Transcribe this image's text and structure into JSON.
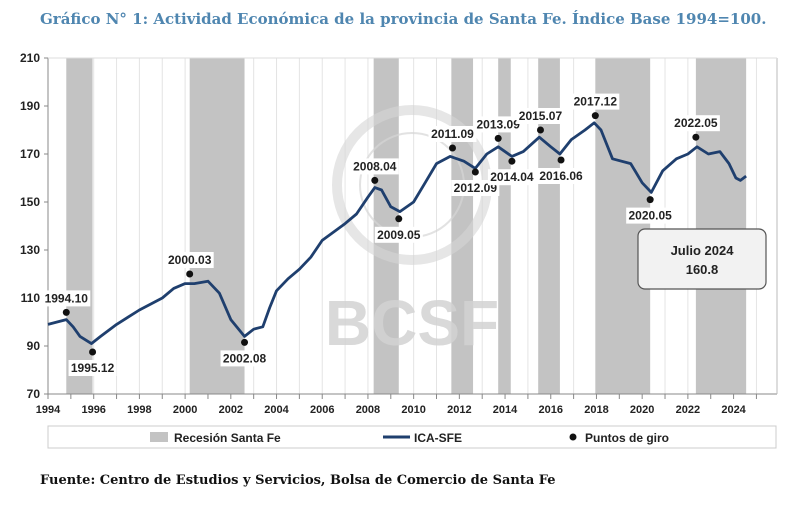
{
  "chart_data": {
    "type": "line",
    "title": "Gráfico N° 1: Actividad Económica de la provincia de Santa Fe. Índice Base 1994=100.",
    "source": "Fuente: Centro de Estudios y Servicios, Bolsa de Comercio de Santa Fe",
    "xlabel": "",
    "ylabel": "",
    "xlim": [
      1994,
      2025.9
    ],
    "ylim": [
      70,
      210
    ],
    "yticks": [
      70,
      90,
      110,
      130,
      150,
      170,
      190,
      210
    ],
    "xticks": [
      1994,
      1996,
      1998,
      2000,
      2002,
      2004,
      2006,
      2008,
      2010,
      2012,
      2014,
      2016,
      2018,
      2020,
      2022,
      2024
    ],
    "legend": {
      "placement": "bottom",
      "items": [
        "Recesión Santa Fe",
        "ICA-SFE",
        "Puntos de giro"
      ]
    },
    "recessions": [
      [
        1994.8,
        1995.95
      ],
      [
        2000.2,
        2002.6
      ],
      [
        2008.25,
        2009.35
      ],
      [
        2011.65,
        2012.6
      ],
      [
        2013.7,
        2014.25
      ],
      [
        2015.45,
        2016.4
      ],
      [
        2017.95,
        2020.35
      ],
      [
        2022.35,
        2024.55
      ]
    ],
    "series": [
      {
        "name": "ICA-SFE",
        "color": "#1f3f6e",
        "x": [
          1994,
          1994.4,
          1994.8,
          1995.1,
          1995.4,
          1995.9,
          1996.3,
          1997,
          1998,
          1999,
          1999.5,
          2000,
          2000.4,
          2001,
          2001.5,
          2002,
          2002.6,
          2003,
          2003.4,
          2003.7,
          2004,
          2004.5,
          2005,
          2005.5,
          2006,
          2007,
          2007.5,
          2008,
          2008.3,
          2008.6,
          2009,
          2009.4,
          2010,
          2010.5,
          2011,
          2011.6,
          2012.2,
          2012.7,
          2013.2,
          2013.7,
          2014.3,
          2014.8,
          2015.5,
          2016,
          2016.4,
          2016.9,
          2017.5,
          2017.9,
          2018.2,
          2018.7,
          2019.5,
          2020,
          2020.4,
          2020.9,
          2021.5,
          2022,
          2022.4,
          2022.9,
          2023.4,
          2023.8,
          2024.1,
          2024.3,
          2024.55
        ],
        "y": [
          99,
          100,
          101,
          98,
          94,
          91,
          94,
          99,
          105,
          110,
          114,
          116,
          116,
          117,
          112,
          101,
          94,
          97,
          98,
          106,
          113,
          118,
          122,
          127,
          134,
          141,
          145,
          152,
          156,
          155,
          148,
          146,
          150,
          158,
          166,
          169,
          167,
          164,
          170,
          173,
          169,
          171,
          177,
          173,
          170,
          176,
          180,
          183,
          180,
          168,
          166,
          158,
          154,
          163,
          168,
          170,
          173,
          170,
          171,
          166,
          160,
          159,
          160.8
        ]
      }
    ],
    "turning_points": [
      {
        "label": "1994.10",
        "x": 1994.8,
        "y": 104,
        "pos": "above"
      },
      {
        "label": "1995.12",
        "x": 1995.95,
        "y": 87.5,
        "pos": "below"
      },
      {
        "label": "2000.03",
        "x": 2000.2,
        "y": 120,
        "pos": "above"
      },
      {
        "label": "2002.08",
        "x": 2002.6,
        "y": 91.5,
        "pos": "below"
      },
      {
        "label": "2008.04",
        "x": 2008.3,
        "y": 159,
        "pos": "above"
      },
      {
        "label": "2009.05",
        "x": 2009.35,
        "y": 143,
        "pos": "below"
      },
      {
        "label": "2011.09",
        "x": 2011.7,
        "y": 172.5,
        "pos": "above"
      },
      {
        "label": "2012.09",
        "x": 2012.7,
        "y": 162.5,
        "pos": "below"
      },
      {
        "label": "2013.09",
        "x": 2013.7,
        "y": 176.5,
        "pos": "above"
      },
      {
        "label": "2014.04",
        "x": 2014.3,
        "y": 167,
        "pos": "below"
      },
      {
        "label": "2015.07",
        "x": 2015.55,
        "y": 180,
        "pos": "above"
      },
      {
        "label": "2016.06",
        "x": 2016.45,
        "y": 167.5,
        "pos": "below"
      },
      {
        "label": "2017.12",
        "x": 2017.95,
        "y": 186,
        "pos": "above"
      },
      {
        "label": "2020.05",
        "x": 2020.35,
        "y": 151,
        "pos": "below"
      },
      {
        "label": "2022.05",
        "x": 2022.35,
        "y": 177,
        "pos": "above"
      }
    ],
    "annotation": {
      "line1": "Julio 2024",
      "line2": "160.8"
    },
    "watermark": "BCSF"
  }
}
